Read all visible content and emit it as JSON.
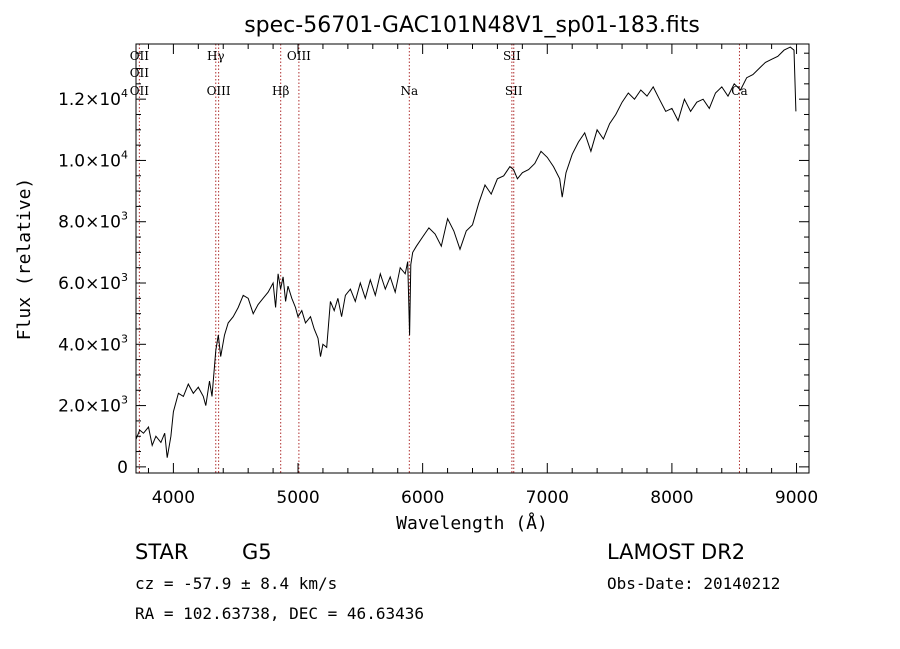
{
  "chart_data": {
    "type": "line",
    "title": "spec-56701-GAC101N48V1_sp01-183.fits",
    "xlabel": "Wavelength (Å)",
    "ylabel": "Flux (relative)",
    "xlim": [
      3700,
      9100
    ],
    "ylim": [
      -200,
      13800
    ],
    "x_ticks": [
      {
        "value": 4000,
        "label": "4000"
      },
      {
        "value": 5000,
        "label": "5000"
      },
      {
        "value": 6000,
        "label": "6000"
      },
      {
        "value": 7000,
        "label": "7000"
      },
      {
        "value": 8000,
        "label": "8000"
      },
      {
        "value": 9000,
        "label": "9000"
      }
    ],
    "y_ticks": [
      {
        "value": 0,
        "mantissa": "0",
        "exp": ""
      },
      {
        "value": 2000,
        "mantissa": "2.0×10",
        "exp": "3"
      },
      {
        "value": 4000,
        "mantissa": "4.0×10",
        "exp": "3"
      },
      {
        "value": 6000,
        "mantissa": "6.0×10",
        "exp": "3"
      },
      {
        "value": 8000,
        "mantissa": "8.0×10",
        "exp": "3"
      },
      {
        "value": 10000,
        "mantissa": "1.0×10",
        "exp": "4"
      },
      {
        "value": 12000,
        "mantissa": "1.2×10",
        "exp": "4"
      }
    ],
    "series": [
      {
        "x": [
          3700,
          3730,
          3760,
          3800,
          3830,
          3860,
          3900,
          3930,
          3950,
          3980,
          4000,
          4040,
          4080,
          4120,
          4160,
          4200,
          4240,
          4260,
          4290,
          4310,
          4340,
          4360,
          4380,
          4410,
          4440,
          4480,
          4520,
          4560,
          4600,
          4640,
          4680,
          4720,
          4760,
          4800,
          4820,
          4840,
          4860,
          4880,
          4900,
          4920,
          4950,
          4980,
          5000,
          5030,
          5060,
          5100,
          5130,
          5160,
          5180,
          5200,
          5230,
          5260,
          5290,
          5320,
          5350,
          5380,
          5420,
          5460,
          5500,
          5540,
          5580,
          5620,
          5660,
          5700,
          5740,
          5780,
          5820,
          5860,
          5880,
          5895,
          5905,
          5920,
          5950,
          6000,
          6050,
          6100,
          6150,
          6200,
          6250,
          6300,
          6350,
          6400,
          6450,
          6500,
          6550,
          6600,
          6650,
          6700,
          6730,
          6760,
          6800,
          6850,
          6900,
          6950,
          7000,
          7050,
          7100,
          7120,
          7150,
          7200,
          7250,
          7300,
          7350,
          7400,
          7450,
          7500,
          7550,
          7600,
          7650,
          7700,
          7750,
          7800,
          7850,
          7900,
          7950,
          8000,
          8050,
          8100,
          8150,
          8200,
          8250,
          8300,
          8350,
          8400,
          8450,
          8500,
          8550,
          8600,
          8650,
          8700,
          8750,
          8800,
          8850,
          8900,
          8950,
          8980,
          8995
        ],
        "values": [
          900,
          1200,
          1100,
          1300,
          700,
          1000,
          800,
          1100,
          300,
          1000,
          1800,
          2400,
          2300,
          2700,
          2400,
          2600,
          2300,
          2000,
          2800,
          2300,
          3800,
          4300,
          3600,
          4300,
          4700,
          4900,
          5200,
          5600,
          5500,
          5000,
          5300,
          5500,
          5700,
          6000,
          5200,
          6300,
          5800,
          6200,
          5400,
          5900,
          5500,
          5200,
          4900,
          5100,
          4700,
          4900,
          4500,
          4200,
          3600,
          4000,
          3900,
          5400,
          5100,
          5500,
          4900,
          5600,
          5800,
          5400,
          6000,
          5500,
          6100,
          5600,
          6300,
          5800,
          6200,
          5700,
          6500,
          6300,
          6700,
          4300,
          6600,
          7000,
          7200,
          7500,
          7800,
          7600,
          7200,
          8100,
          7700,
          7100,
          7700,
          7900,
          8600,
          9200,
          8900,
          9400,
          9500,
          9800,
          9700,
          9400,
          9600,
          9700,
          9900,
          10300,
          10100,
          9800,
          9400,
          8800,
          9600,
          10200,
          10600,
          10900,
          10300,
          11000,
          10700,
          11200,
          11500,
          11900,
          12200,
          12000,
          12300,
          12100,
          12400,
          12000,
          11600,
          11700,
          11300,
          12000,
          11600,
          11900,
          12000,
          11700,
          12200,
          12400,
          12100,
          12500,
          12300,
          12700,
          12800,
          13000,
          13200,
          13300,
          13400,
          13600,
          13700,
          13600,
          11600
        ]
      }
    ],
    "lines": [
      {
        "name": "OII",
        "x": 3727,
        "upper": true,
        "lower": true
      },
      {
        "name": "Hγ",
        "x": 4340,
        "upper": true,
        "lower": false
      },
      {
        "name": "OIII",
        "x": 4363,
        "upper": false,
        "lower": true
      },
      {
        "name": "Hβ",
        "x": 4861,
        "upper": false,
        "lower": true
      },
      {
        "name": "OIII",
        "x": 5007,
        "upper": true,
        "lower": false
      },
      {
        "name": "Na",
        "x": 5893,
        "upper": false,
        "lower": true
      },
      {
        "name": "SII",
        "x": 6716,
        "upper": true,
        "lower": false
      },
      {
        "name": "SII",
        "x": 6731,
        "upper": false,
        "lower": true
      },
      {
        "name": "Ca",
        "x": 8542,
        "upper": false,
        "lower": true
      }
    ]
  },
  "info": {
    "class": "STAR",
    "subclass": "G5",
    "survey": "LAMOST DR2",
    "cz": "cz = -57.9 ± 8.4 km/s",
    "obs_date": "Obs-Date: 20140212",
    "coords": "RA = 102.63738, DEC =  46.63436"
  }
}
